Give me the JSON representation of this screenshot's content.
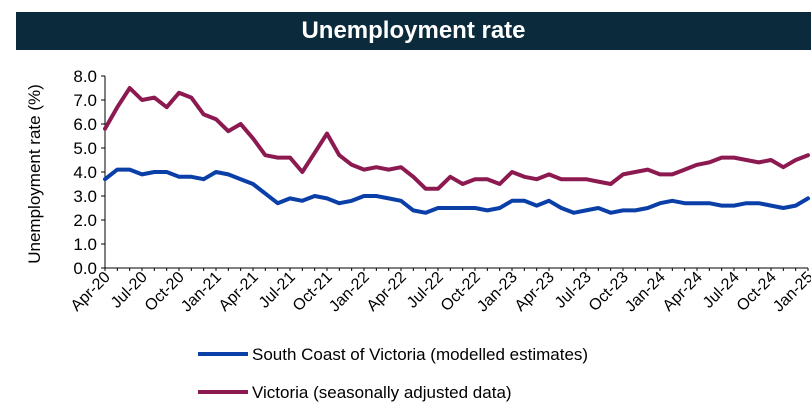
{
  "chart_data": {
    "type": "line",
    "title": "Unemployment rate",
    "ylabel": "Unemployment rate (%)",
    "xlabel": "",
    "ylim": [
      0,
      8
    ],
    "y_ticks": [
      "0.0",
      "1.0",
      "2.0",
      "3.0",
      "4.0",
      "5.0",
      "6.0",
      "7.0",
      "8.0"
    ],
    "x_tick_labels": [
      "Apr-20",
      "Jul-20",
      "Oct-20",
      "Jan-21",
      "Apr-21",
      "Jul-21",
      "Oct-21",
      "Jan-22",
      "Apr-22",
      "Jul-22",
      "Oct-22",
      "Jan-23",
      "Apr-23",
      "Jul-23",
      "Oct-23",
      "Jan-24",
      "Apr-24",
      "Jul-24",
      "Oct-24",
      "Jan-25"
    ],
    "x": [
      "Apr-20",
      "May-20",
      "Jun-20",
      "Jul-20",
      "Aug-20",
      "Sep-20",
      "Oct-20",
      "Nov-20",
      "Dec-20",
      "Jan-21",
      "Feb-21",
      "Mar-21",
      "Apr-21",
      "May-21",
      "Jun-21",
      "Jul-21",
      "Aug-21",
      "Sep-21",
      "Oct-21",
      "Nov-21",
      "Dec-21",
      "Jan-22",
      "Feb-22",
      "Mar-22",
      "Apr-22",
      "May-22",
      "Jun-22",
      "Jul-22",
      "Aug-22",
      "Sep-22",
      "Oct-22",
      "Nov-22",
      "Dec-22",
      "Jan-23",
      "Feb-23",
      "Mar-23",
      "Apr-23",
      "May-23",
      "Jun-23",
      "Jul-23",
      "Aug-23",
      "Sep-23",
      "Oct-23",
      "Nov-23",
      "Dec-23",
      "Jan-24",
      "Feb-24",
      "Mar-24",
      "Apr-24",
      "May-24",
      "Jun-24",
      "Jul-24",
      "Aug-24",
      "Sep-24",
      "Oct-24",
      "Nov-24",
      "Dec-24",
      "Jan-25"
    ],
    "grid": false,
    "legend_position": "bottom",
    "series": [
      {
        "name": "South Coast of Victoria (modelled estimates)",
        "color": "#0b3fa8",
        "values": [
          3.7,
          4.1,
          4.1,
          3.9,
          4.0,
          4.0,
          3.8,
          3.8,
          3.7,
          4.0,
          3.9,
          3.7,
          3.5,
          3.1,
          2.7,
          2.9,
          2.8,
          3.0,
          2.9,
          2.7,
          2.8,
          3.0,
          3.0,
          2.9,
          2.8,
          2.4,
          2.3,
          2.5,
          2.5,
          2.5,
          2.5,
          2.4,
          2.5,
          2.8,
          2.8,
          2.6,
          2.8,
          2.5,
          2.3,
          2.4,
          2.5,
          2.3,
          2.4,
          2.4,
          2.5,
          2.7,
          2.8,
          2.7,
          2.7,
          2.7,
          2.6,
          2.6,
          2.7,
          2.7,
          2.6,
          2.5,
          2.6,
          2.9
        ]
      },
      {
        "name": "Victoria (seasonally adjusted data)",
        "color": "#8c1a50",
        "values": [
          5.8,
          6.7,
          7.5,
          7.0,
          7.1,
          6.7,
          7.3,
          7.1,
          6.4,
          6.2,
          5.7,
          6.0,
          5.4,
          4.7,
          4.6,
          4.6,
          4.0,
          4.8,
          5.6,
          4.7,
          4.3,
          4.1,
          4.2,
          4.1,
          4.2,
          3.8,
          3.3,
          3.3,
          3.8,
          3.5,
          3.7,
          3.7,
          3.5,
          4.0,
          3.8,
          3.7,
          3.9,
          3.7,
          3.7,
          3.7,
          3.6,
          3.5,
          3.9,
          4.0,
          4.1,
          3.9,
          3.9,
          4.1,
          4.3,
          4.4,
          4.6,
          4.6,
          4.5,
          4.4,
          4.5,
          4.2,
          4.5,
          4.7
        ]
      }
    ]
  }
}
